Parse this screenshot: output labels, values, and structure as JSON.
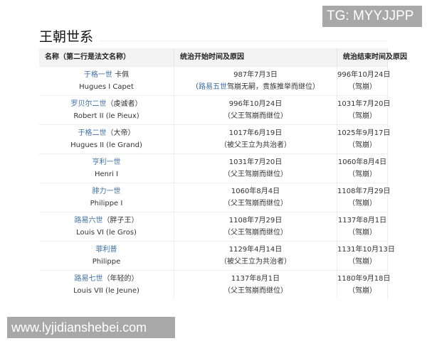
{
  "watermark_top": "TG: MYYJJPP",
  "watermark_bottom": "www.lyjidianshebei.com",
  "title": "王朝世系",
  "headers": [
    "名称（第二行是法文名称）",
    "统治开始时间及原因",
    "统治结束时间及原因"
  ],
  "rows": [
    {
      "name_link": "于格一世",
      "name_extra": " 卡佩",
      "name_fr": "Hugues I Capet",
      "start_date": "987年7月3日",
      "start_reason_pre": "（",
      "start_reason_link": "路易五世",
      "start_reason": "驾崩无嗣，贵族推举而继位）",
      "end_date": "996年10月24日",
      "end_reason": "（驾崩）"
    },
    {
      "name_link": "罗贝尔二世",
      "name_extra": "（虔诚者）",
      "name_fr": "Robert II (le Pieux)",
      "start_date": "996年10月24日",
      "start_reason_pre": "",
      "start_reason_link": "",
      "start_reason": "（父王驾崩而继位）",
      "end_date": "1031年7月20日",
      "end_reason": "（驾崩）"
    },
    {
      "name_link": "于格二世",
      "name_extra": "（大帝）",
      "name_fr": "Hugues II (le Grand)",
      "start_date": "1017年6月19日",
      "start_reason_pre": "",
      "start_reason_link": "",
      "start_reason": "（被父王立为共治者）",
      "end_date": "1025年9月17日",
      "end_reason": "（驾崩）"
    },
    {
      "name_link": "亨利一世",
      "name_extra": "",
      "name_fr": "Henri I",
      "start_date": "1031年7月20日",
      "start_reason_pre": "",
      "start_reason_link": "",
      "start_reason": "（父王驾崩而继位）",
      "end_date": "1060年8月4日",
      "end_reason": "（驾崩）"
    },
    {
      "name_link": "腓力一世",
      "name_extra": "",
      "name_fr": "Philippe I",
      "start_date": "1060年8月4日",
      "start_reason_pre": "",
      "start_reason_link": "",
      "start_reason": "（父王驾崩而继位）",
      "end_date": "1108年7月29日",
      "end_reason": "（驾崩）"
    },
    {
      "name_link": "路易六世",
      "name_extra": "（胖子王）",
      "name_fr": "Louis VI (le Gros)",
      "start_date": "1108年7月29日",
      "start_reason_pre": "",
      "start_reason_link": "",
      "start_reason": "（父王驾崩而继位）",
      "end_date": "1137年8月1日",
      "end_reason": "（驾崩）"
    },
    {
      "name_link": "菲利普",
      "name_extra": "",
      "name_fr": "Philippe",
      "start_date": "1129年4月14日",
      "start_reason_pre": "",
      "start_reason_link": "",
      "start_reason": "（被父王立为共治者）",
      "end_date": "1131年10月13日",
      "end_reason": "（驾崩）"
    },
    {
      "name_link": "路易七世",
      "name_extra": "（年轻的）",
      "name_fr": "Louis VII (le Jeune)",
      "start_date": "1137年8月1日",
      "start_reason_pre": "",
      "start_reason_link": "",
      "start_reason": "（父王驾崩而继位）",
      "end_date": "1180年9月18日",
      "end_reason": "（驾崩）"
    }
  ],
  "colors": {
    "link": "#3b6ea5",
    "header_bg": "#f3f3f3",
    "watermark_bg": "#a8a8a8"
  }
}
